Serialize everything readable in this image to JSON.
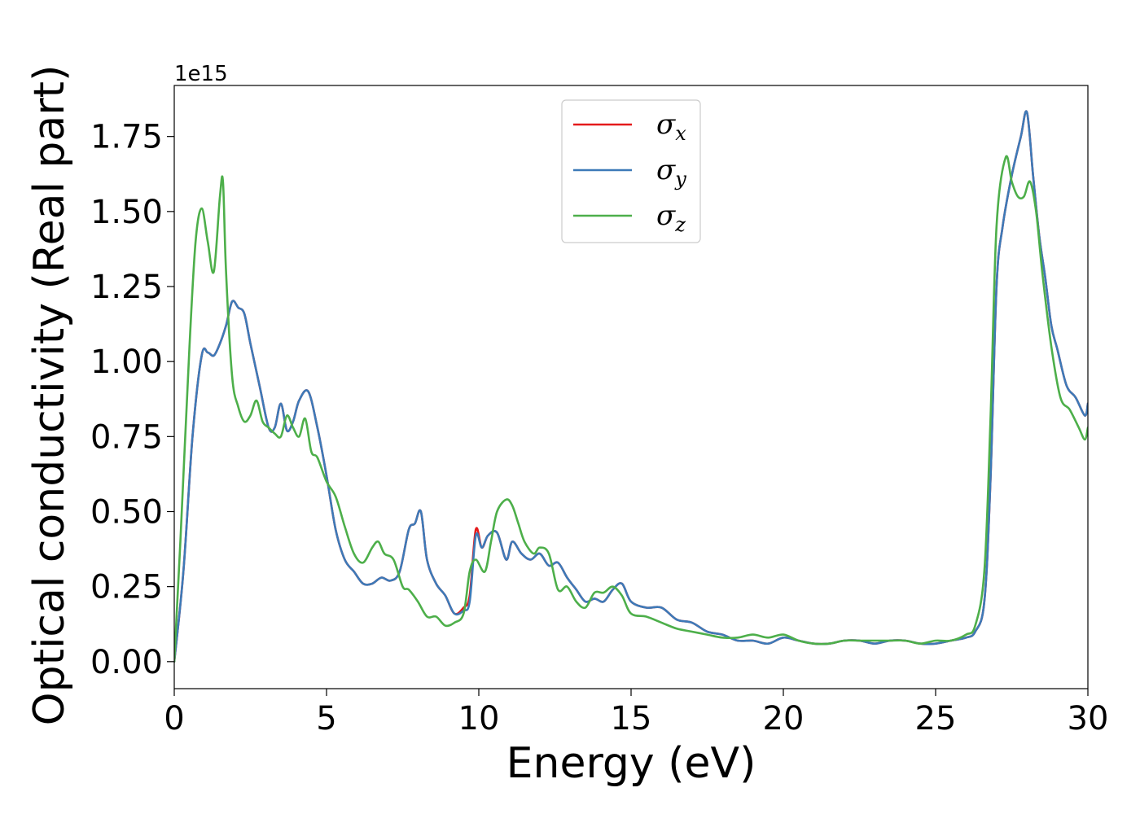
{
  "chart_data": {
    "type": "line",
    "xlabel": "Energy (eV)",
    "ylabel": "Optical conductivity (Real part)",
    "y_offset_text": "1e15",
    "xlim": [
      0,
      30
    ],
    "ylim": [
      -0.09,
      1.92
    ],
    "x_ticks": [
      0,
      5,
      10,
      15,
      20,
      25,
      30
    ],
    "x_tick_labels": [
      "0",
      "5",
      "10",
      "15",
      "20",
      "25",
      "30"
    ],
    "y_ticks": [
      0.0,
      0.25,
      0.5,
      0.75,
      1.0,
      1.25,
      1.5,
      1.75
    ],
    "y_tick_labels": [
      "0.00",
      "0.25",
      "0.50",
      "0.75",
      "1.00",
      "1.25",
      "1.50",
      "1.75"
    ],
    "grid": false,
    "legend_position": "upper center",
    "series": [
      {
        "name": "σx",
        "legend_base": "σ",
        "legend_sub": "x",
        "color": "#e41a1c",
        "x": [
          0,
          0.3,
          0.6,
          0.9,
          1.1,
          1.3,
          1.5,
          1.7,
          1.9,
          2.1,
          2.3,
          2.5,
          2.8,
          3.1,
          3.3,
          3.5,
          3.7,
          3.9,
          4.1,
          4.4,
          4.7,
          5.0,
          5.3,
          5.6,
          5.9,
          6.2,
          6.5,
          6.8,
          7.1,
          7.4,
          7.7,
          7.9,
          8.1,
          8.3,
          8.6,
          8.9,
          9.2,
          9.5,
          9.7,
          9.9,
          10.1,
          10.3,
          10.6,
          10.9,
          11.1,
          11.4,
          11.7,
          12.0,
          12.3,
          12.6,
          12.9,
          13.2,
          13.5,
          13.8,
          14.1,
          14.4,
          14.7,
          15.0,
          15.5,
          16.0,
          16.5,
          17.0,
          17.5,
          18.0,
          18.5,
          19.0,
          19.5,
          20.0,
          20.5,
          21.0,
          21.5,
          22.0,
          22.5,
          23.0,
          23.5,
          24.0,
          24.5,
          25.0,
          25.5,
          26.0,
          26.3,
          26.6,
          26.8,
          27.0,
          27.2,
          27.5,
          27.8,
          28.0,
          28.2,
          28.4,
          28.6,
          28.8,
          29.0,
          29.3,
          29.6,
          29.9,
          30.0
        ],
        "y": [
          0.0,
          0.3,
          0.75,
          1.02,
          1.03,
          1.02,
          1.06,
          1.12,
          1.2,
          1.18,
          1.16,
          1.06,
          0.92,
          0.78,
          0.78,
          0.86,
          0.77,
          0.8,
          0.87,
          0.9,
          0.78,
          0.62,
          0.44,
          0.34,
          0.3,
          0.26,
          0.26,
          0.28,
          0.27,
          0.3,
          0.44,
          0.46,
          0.5,
          0.34,
          0.26,
          0.22,
          0.16,
          0.18,
          0.22,
          0.44,
          0.38,
          0.42,
          0.43,
          0.34,
          0.4,
          0.36,
          0.34,
          0.36,
          0.32,
          0.33,
          0.28,
          0.24,
          0.2,
          0.21,
          0.2,
          0.24,
          0.26,
          0.2,
          0.18,
          0.18,
          0.14,
          0.13,
          0.1,
          0.09,
          0.07,
          0.07,
          0.06,
          0.08,
          0.07,
          0.06,
          0.06,
          0.07,
          0.07,
          0.06,
          0.07,
          0.07,
          0.06,
          0.06,
          0.07,
          0.08,
          0.1,
          0.2,
          0.6,
          1.25,
          1.45,
          1.62,
          1.75,
          1.83,
          1.62,
          1.42,
          1.28,
          1.12,
          1.04,
          0.92,
          0.88,
          0.82,
          0.86
        ]
      },
      {
        "name": "σy",
        "legend_base": "σ",
        "legend_sub": "y",
        "color": "#3d7ab8",
        "x": [
          0,
          0.3,
          0.6,
          0.9,
          1.1,
          1.3,
          1.5,
          1.7,
          1.9,
          2.1,
          2.3,
          2.5,
          2.8,
          3.1,
          3.3,
          3.5,
          3.7,
          3.9,
          4.1,
          4.4,
          4.7,
          5.0,
          5.3,
          5.6,
          5.9,
          6.2,
          6.5,
          6.8,
          7.1,
          7.4,
          7.7,
          7.9,
          8.1,
          8.3,
          8.6,
          8.9,
          9.2,
          9.5,
          9.7,
          9.9,
          10.1,
          10.3,
          10.6,
          10.9,
          11.1,
          11.4,
          11.7,
          12.0,
          12.3,
          12.6,
          12.9,
          13.2,
          13.5,
          13.8,
          14.1,
          14.4,
          14.7,
          15.0,
          15.5,
          16.0,
          16.5,
          17.0,
          17.5,
          18.0,
          18.5,
          19.0,
          19.5,
          20.0,
          20.5,
          21.0,
          21.5,
          22.0,
          22.5,
          23.0,
          23.5,
          24.0,
          24.5,
          25.0,
          25.5,
          26.0,
          26.3,
          26.6,
          26.8,
          27.0,
          27.2,
          27.5,
          27.8,
          28.0,
          28.2,
          28.4,
          28.6,
          28.8,
          29.0,
          29.3,
          29.6,
          29.9,
          30.0
        ],
        "y": [
          0.0,
          0.3,
          0.75,
          1.02,
          1.03,
          1.02,
          1.06,
          1.12,
          1.2,
          1.18,
          1.16,
          1.06,
          0.92,
          0.78,
          0.78,
          0.86,
          0.77,
          0.8,
          0.87,
          0.9,
          0.78,
          0.62,
          0.44,
          0.34,
          0.3,
          0.26,
          0.26,
          0.28,
          0.27,
          0.3,
          0.44,
          0.46,
          0.5,
          0.34,
          0.26,
          0.22,
          0.16,
          0.17,
          0.2,
          0.42,
          0.38,
          0.42,
          0.43,
          0.34,
          0.4,
          0.36,
          0.34,
          0.36,
          0.32,
          0.33,
          0.28,
          0.24,
          0.2,
          0.21,
          0.2,
          0.24,
          0.26,
          0.2,
          0.18,
          0.18,
          0.14,
          0.13,
          0.1,
          0.09,
          0.07,
          0.07,
          0.06,
          0.08,
          0.07,
          0.06,
          0.06,
          0.07,
          0.07,
          0.06,
          0.07,
          0.07,
          0.06,
          0.06,
          0.07,
          0.08,
          0.1,
          0.2,
          0.6,
          1.25,
          1.45,
          1.62,
          1.75,
          1.83,
          1.62,
          1.42,
          1.28,
          1.12,
          1.04,
          0.92,
          0.88,
          0.82,
          0.86
        ]
      },
      {
        "name": "σz",
        "legend_base": "σ",
        "legend_sub": "z",
        "color": "#4daf4a",
        "x": [
          0,
          0.2,
          0.5,
          0.7,
          0.9,
          1.1,
          1.3,
          1.5,
          1.6,
          1.7,
          1.9,
          2.1,
          2.3,
          2.5,
          2.7,
          2.9,
          3.1,
          3.3,
          3.5,
          3.7,
          3.9,
          4.1,
          4.3,
          4.5,
          4.7,
          5.0,
          5.3,
          5.6,
          5.9,
          6.2,
          6.5,
          6.7,
          6.9,
          7.2,
          7.5,
          7.7,
          8.0,
          8.3,
          8.6,
          8.9,
          9.2,
          9.5,
          9.7,
          9.9,
          10.2,
          10.4,
          10.6,
          10.9,
          11.1,
          11.3,
          11.5,
          11.8,
          12.0,
          12.3,
          12.6,
          12.9,
          13.2,
          13.5,
          13.8,
          14.1,
          14.4,
          14.7,
          15.0,
          15.5,
          16.0,
          16.5,
          17.0,
          17.5,
          18.0,
          18.5,
          19.0,
          19.5,
          20.0,
          20.5,
          21.0,
          21.5,
          22.0,
          22.5,
          23.0,
          23.5,
          24.0,
          24.5,
          25.0,
          25.5,
          26.0,
          26.3,
          26.6,
          26.8,
          27.0,
          27.3,
          27.5,
          27.7,
          27.9,
          28.1,
          28.3,
          28.5,
          28.8,
          29.1,
          29.4,
          29.7,
          29.9,
          30.0
        ],
        "y": [
          0.0,
          0.4,
          1.05,
          1.4,
          1.51,
          1.4,
          1.3,
          1.55,
          1.6,
          1.3,
          0.95,
          0.85,
          0.8,
          0.82,
          0.87,
          0.8,
          0.78,
          0.76,
          0.75,
          0.82,
          0.78,
          0.75,
          0.81,
          0.7,
          0.68,
          0.6,
          0.55,
          0.45,
          0.36,
          0.33,
          0.38,
          0.4,
          0.36,
          0.34,
          0.25,
          0.24,
          0.2,
          0.15,
          0.15,
          0.12,
          0.13,
          0.16,
          0.3,
          0.34,
          0.3,
          0.4,
          0.5,
          0.54,
          0.52,
          0.46,
          0.4,
          0.36,
          0.38,
          0.36,
          0.24,
          0.25,
          0.2,
          0.18,
          0.23,
          0.23,
          0.25,
          0.22,
          0.16,
          0.15,
          0.13,
          0.11,
          0.1,
          0.09,
          0.08,
          0.08,
          0.09,
          0.08,
          0.09,
          0.07,
          0.06,
          0.06,
          0.07,
          0.07,
          0.07,
          0.07,
          0.07,
          0.06,
          0.07,
          0.07,
          0.09,
          0.12,
          0.3,
          0.8,
          1.45,
          1.68,
          1.6,
          1.55,
          1.55,
          1.6,
          1.5,
          1.3,
          1.05,
          0.88,
          0.84,
          0.78,
          0.74,
          0.78
        ]
      }
    ]
  }
}
